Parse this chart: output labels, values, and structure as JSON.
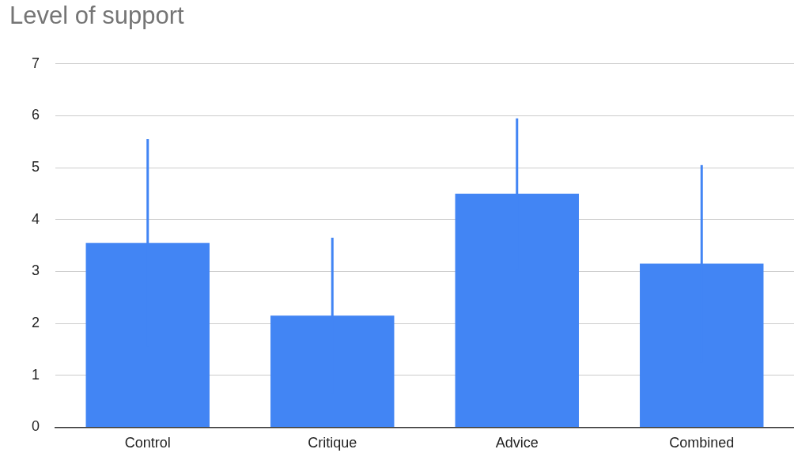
{
  "chart_data": {
    "type": "bar",
    "title": "Level of support",
    "categories": [
      "Control",
      "Critique",
      "Advice",
      "Combined"
    ],
    "values": [
      3.55,
      2.15,
      4.5,
      3.15
    ],
    "errors": [
      2.0,
      1.5,
      1.45,
      1.9
    ],
    "color": "#4285f4",
    "ylim": [
      0,
      7
    ],
    "yticks": [
      0,
      1,
      2,
      3,
      4,
      5,
      6,
      7
    ],
    "grid": "y",
    "legend": false
  }
}
